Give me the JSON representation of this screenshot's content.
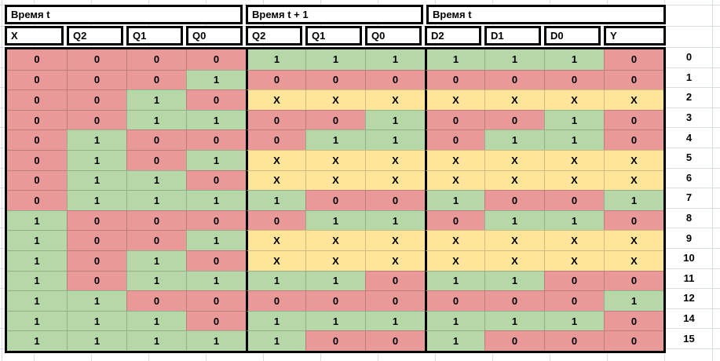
{
  "table": {
    "header_groups": [
      {
        "label": "Время t",
        "span": 4
      },
      {
        "label": "Время t + 1",
        "span": 3
      },
      {
        "label": "Время t",
        "span": 4
      }
    ],
    "columns": [
      "X",
      "Q2",
      "Q1",
      "Q0",
      "Q2",
      "Q1",
      "Q0",
      "D2",
      "D1",
      "D0",
      "Y"
    ],
    "rows": [
      {
        "label": "0",
        "cells": [
          "0",
          "0",
          "0",
          "0",
          "1",
          "1",
          "1",
          "1",
          "1",
          "1",
          "0"
        ]
      },
      {
        "label": "1",
        "cells": [
          "0",
          "0",
          "0",
          "1",
          "0",
          "0",
          "0",
          "0",
          "0",
          "0",
          "0"
        ]
      },
      {
        "label": "2",
        "cells": [
          "0",
          "0",
          "1",
          "0",
          "X",
          "X",
          "X",
          "X",
          "X",
          "X",
          "X"
        ]
      },
      {
        "label": "3",
        "cells": [
          "0",
          "0",
          "1",
          "1",
          "0",
          "0",
          "1",
          "0",
          "0",
          "1",
          "0"
        ]
      },
      {
        "label": "4",
        "cells": [
          "0",
          "1",
          "0",
          "0",
          "0",
          "1",
          "1",
          "0",
          "1",
          "1",
          "0"
        ]
      },
      {
        "label": "5",
        "cells": [
          "0",
          "1",
          "0",
          "1",
          "X",
          "X",
          "X",
          "X",
          "X",
          "X",
          "X"
        ]
      },
      {
        "label": "6",
        "cells": [
          "0",
          "1",
          "1",
          "0",
          "X",
          "X",
          "X",
          "X",
          "X",
          "X",
          "X"
        ]
      },
      {
        "label": "7",
        "cells": [
          "0",
          "1",
          "1",
          "1",
          "1",
          "0",
          "0",
          "1",
          "0",
          "0",
          "1"
        ]
      },
      {
        "label": "8",
        "cells": [
          "1",
          "0",
          "0",
          "0",
          "0",
          "1",
          "1",
          "0",
          "1",
          "1",
          "0"
        ]
      },
      {
        "label": "9",
        "cells": [
          "1",
          "0",
          "0",
          "1",
          "X",
          "X",
          "X",
          "X",
          "X",
          "X",
          "X"
        ]
      },
      {
        "label": "10",
        "cells": [
          "1",
          "0",
          "1",
          "0",
          "X",
          "X",
          "X",
          "X",
          "X",
          "X",
          "X"
        ]
      },
      {
        "label": "11",
        "cells": [
          "1",
          "0",
          "1",
          "1",
          "1",
          "1",
          "0",
          "1",
          "1",
          "0",
          "0"
        ]
      },
      {
        "label": "12",
        "cells": [
          "1",
          "1",
          "0",
          "0",
          "0",
          "0",
          "0",
          "0",
          "0",
          "0",
          "1"
        ]
      },
      {
        "label": "14",
        "cells": [
          "1",
          "1",
          "1",
          "0",
          "1",
          "1",
          "1",
          "1",
          "1",
          "1",
          "0"
        ]
      },
      {
        "label": "15",
        "cells": [
          "1",
          "1",
          "1",
          "1",
          "1",
          "0",
          "0",
          "1",
          "0",
          "0",
          "0"
        ]
      }
    ],
    "value_colors": {
      "0": "#ea9999",
      "1": "#b6d7a8",
      "X": "#ffe599"
    },
    "header_bg": "#ffffff",
    "border_color": "#000000",
    "gridline_color": "#d8dde3"
  }
}
